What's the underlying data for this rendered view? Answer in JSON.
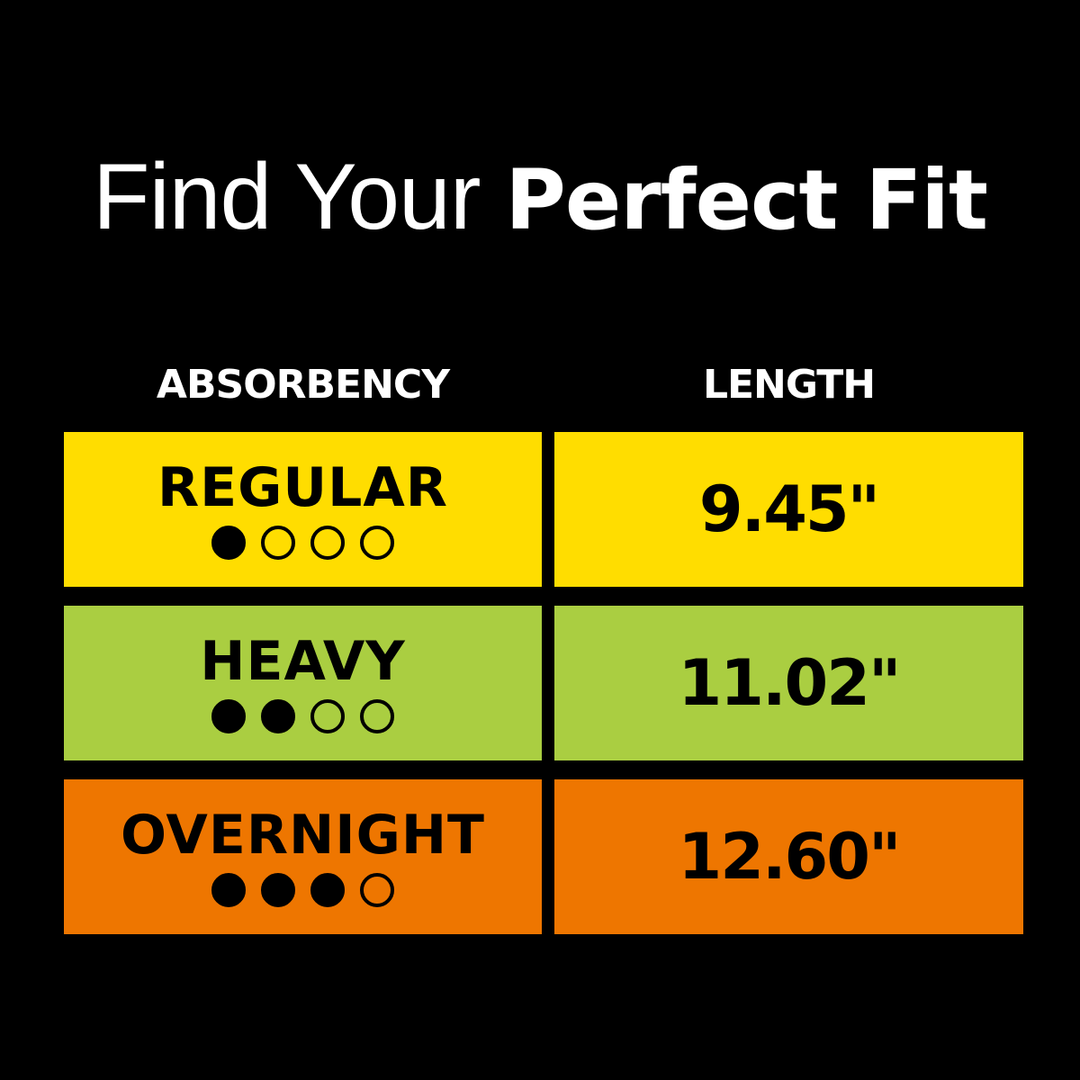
{
  "title": {
    "light": "Find Your ",
    "bold": "Perfect Fit"
  },
  "headers": {
    "absorbency": "ABSORBENCY",
    "length": "LENGTH"
  },
  "rows": [
    {
      "label": "REGULAR",
      "level": 1,
      "max_level": 4,
      "length": "9.45\"",
      "color": "#FFDD00"
    },
    {
      "label": "HEAVY",
      "level": 2,
      "max_level": 4,
      "length": "11.02\"",
      "color": "#AACE41"
    },
    {
      "label": "OVERNIGHT",
      "level": 3,
      "max_level": 4,
      "length": "12.60\"",
      "color": "#EE7600"
    }
  ]
}
